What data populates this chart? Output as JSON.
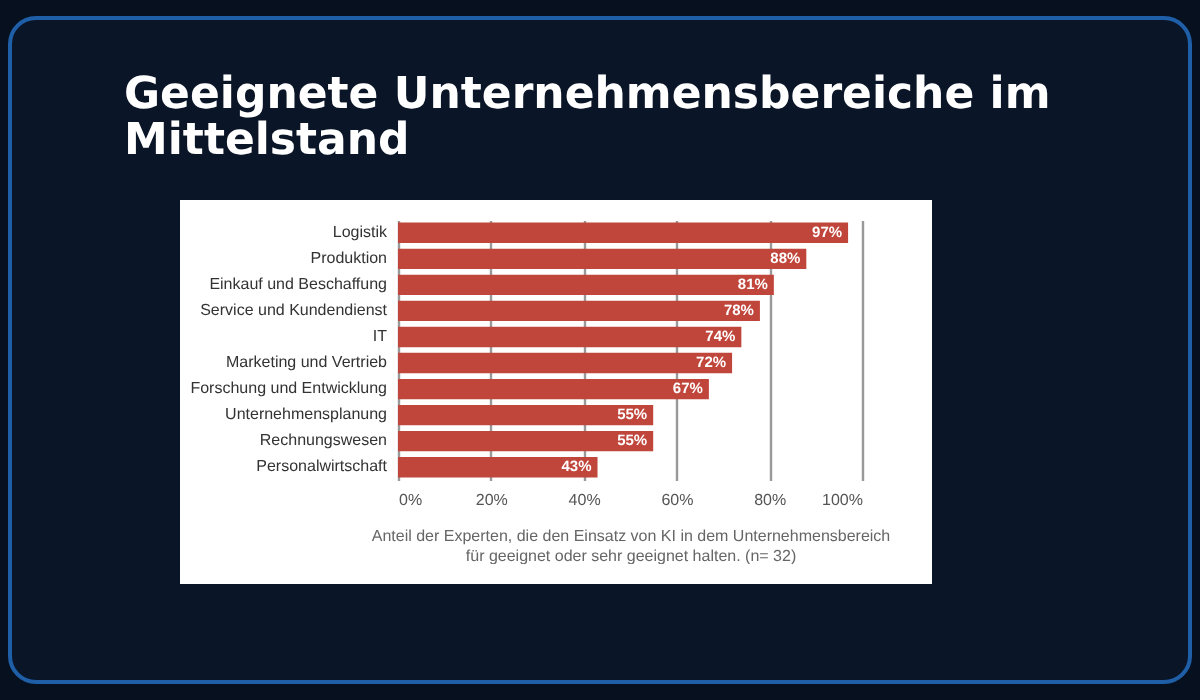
{
  "chart_data": {
    "type": "bar",
    "orientation": "horizontal",
    "title": "Geeignete Unternehmensbereiche  im Mittelstand",
    "categories": [
      "Logistik",
      "Produktion",
      "Einkauf und Beschaffung",
      "Service und Kundendienst",
      "IT",
      "Marketing und Vertrieb",
      "Forschung und Entwicklung",
      "Unternehmensplanung",
      "Rechnungswesen",
      "Personalwirtschaft"
    ],
    "values": [
      97,
      88,
      81,
      78,
      74,
      72,
      67,
      55,
      55,
      43
    ],
    "value_labels": [
      "97%",
      "88%",
      "81%",
      "78%",
      "74%",
      "72%",
      "67%",
      "55%",
      "55%",
      "43%"
    ],
    "color": "#c0453a",
    "xlim": [
      0,
      100
    ],
    "xticks": [
      {
        "value": 0,
        "label": "0%"
      },
      {
        "value": 20,
        "label": "20%"
      },
      {
        "value": 40,
        "label": "40%"
      },
      {
        "value": 60,
        "label": "60%"
      },
      {
        "value": 80,
        "label": "80%"
      },
      {
        "value": 100,
        "label": "100%"
      }
    ],
    "grid": "x",
    "annotations": [
      "Anteil der Experten, die den Einsatz von KI in dem Unternehmensbereich",
      "für geeignet oder sehr geeignet halten. (n= 32)"
    ]
  }
}
